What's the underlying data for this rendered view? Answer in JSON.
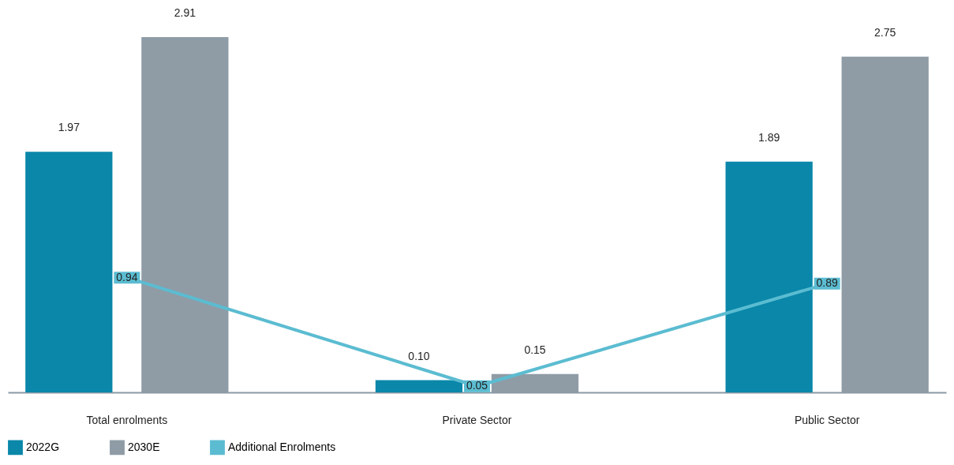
{
  "chart_data": {
    "type": "bar",
    "categories": [
      "Total enrolments",
      "Private Sector",
      "Public Sector"
    ],
    "series": [
      {
        "name": "2022G",
        "color": "#0a87a9",
        "values": [
          1.97,
          0.1,
          1.89
        ],
        "value_labels": [
          "1.97",
          "0.10",
          "1.89"
        ]
      },
      {
        "name": "2030E",
        "color": "#8f9ca6",
        "values": [
          2.91,
          0.15,
          2.75
        ],
        "value_labels": [
          "2.91",
          "0.15",
          "2.75"
        ]
      },
      {
        "name": "Additional Enrolments",
        "color": "#5bbcd1",
        "type": "line",
        "marker": "square",
        "values": [
          0.94,
          0.05,
          0.89
        ],
        "value_labels": [
          "0.94",
          "0.05",
          "0.89"
        ]
      }
    ],
    "legend": "bottom"
  }
}
